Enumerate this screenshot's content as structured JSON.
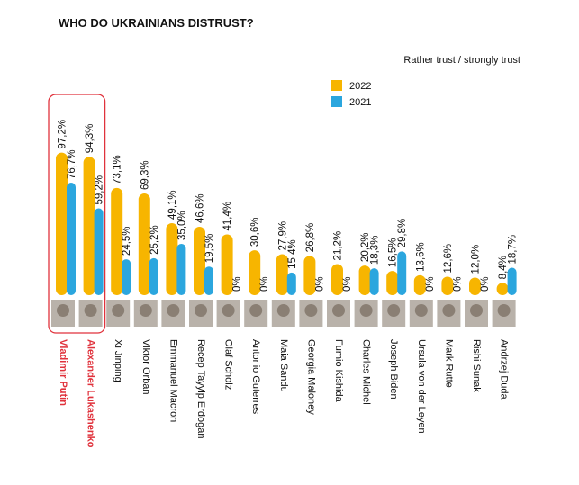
{
  "chart_data": {
    "type": "bar",
    "title": "WHO DO UKRAINIANS DISTRUST?",
    "subtitle": "Rather trust / strongly trust",
    "categories": [
      "Vladimir Putin",
      "Alexander Lukashenko",
      "Xi Jinping",
      "Viktor Orban",
      "Emmanuel Macron",
      "Recep Tayyip Erdogan",
      "Olaf Scholz",
      "Antonio Guterres",
      "Maia Sandu",
      "Georgia Maloney",
      "Fumio Kishida",
      "Charles Michel",
      "Joseph Biden",
      "Ursula von der Leyen",
      "Mark Rutte",
      "Rishi Sunak",
      "Andrzej Duda"
    ],
    "series": [
      {
        "name": "2022",
        "color": "#f7b500",
        "values": [
          97.2,
          94.3,
          73.1,
          69.3,
          49.1,
          46.6,
          41.4,
          30.6,
          27.9,
          26.8,
          21.2,
          20.2,
          16.5,
          13.6,
          12.6,
          12.0,
          8.4
        ],
        "value_labels": [
          "97,2%",
          "94,3%",
          "73,1%",
          "69,3%",
          "49,1%",
          "46,6%",
          "41,4%",
          "30,6%",
          "27,9%",
          "26,8%",
          "21,2%",
          "20,2%",
          "16,5%",
          "13,6%",
          "12,6%",
          "12,0%",
          "8,4%"
        ]
      },
      {
        "name": "2021",
        "color": "#2ba6de",
        "values": [
          76.7,
          59.2,
          24.5,
          25.2,
          35.0,
          19.5,
          0,
          0,
          15.4,
          0,
          0,
          18.3,
          29.8,
          0,
          0,
          0,
          18.7
        ],
        "value_labels": [
          "76,7%",
          "59,2%",
          "24,5%",
          "25,2%",
          "35,0%",
          "19,5%",
          "0%",
          "0%",
          "15,4%",
          "0%",
          "0%",
          "18,3%",
          "29,8%",
          "0%",
          "0%",
          "0%",
          "18,7%"
        ]
      }
    ],
    "ylim": [
      0,
      100
    ],
    "highlight": [
      0,
      1
    ],
    "highlight_color": "#e0323c"
  }
}
